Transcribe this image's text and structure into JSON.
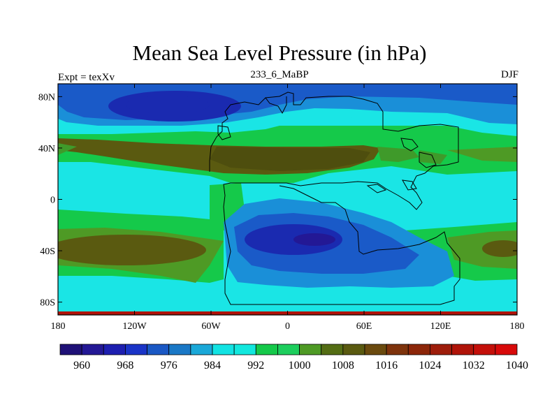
{
  "header": {
    "title": "Mean Sea Level Pressure (in hPa)",
    "left_label": "Expt = texXv",
    "center_label": "233_6_MaBP",
    "right_label": "DJF"
  },
  "axes": {
    "y_ticks": [
      {
        "lat": 80,
        "label": "80N"
      },
      {
        "lat": 40,
        "label": "40N"
      },
      {
        "lat": 0,
        "label": "0"
      },
      {
        "lat": -40,
        "label": "40S"
      },
      {
        "lat": -80,
        "label": "80S"
      }
    ],
    "x_ticks": [
      {
        "lon": -180,
        "label": "180"
      },
      {
        "lon": -120,
        "label": "120W"
      },
      {
        "lon": -60,
        "label": "60W"
      },
      {
        "lon": 0,
        "label": "0"
      },
      {
        "lon": 60,
        "label": "60E"
      },
      {
        "lon": 120,
        "label": "120E"
      },
      {
        "lon": 180,
        "label": "180"
      }
    ],
    "lon_range": [
      -180,
      180
    ],
    "lat_range": [
      -90,
      90
    ]
  },
  "colorbar": {
    "colors": [
      "#1f1177",
      "#231895",
      "#1d1fb0",
      "#1a34c7",
      "#1a58c4",
      "#1a78c6",
      "#1aa8d8",
      "#12e3e3",
      "#12e8de",
      "#15c94a",
      "#1dce5d",
      "#4e9a25",
      "#546d14",
      "#5a5a10",
      "#6a4a0e",
      "#7e330c",
      "#8c2609",
      "#9e1d0b",
      "#b01409",
      "#c4100a",
      "#d80a0a"
    ],
    "tick_labels": [
      "960",
      "968",
      "976",
      "984",
      "992",
      "1000",
      "1008",
      "1016",
      "1024",
      "1032",
      "1040"
    ]
  },
  "colors": {
    "ocean_cyan": "#1ae5e5",
    "green": "#15c94a",
    "mid_blue": "#1a8fd8",
    "blue": "#1a5ac8",
    "deep_blue": "#1a2ab0",
    "olive": "#5a5a10",
    "olive_dark": "#4e4e0e",
    "land_green": "#3f9a2a"
  }
}
